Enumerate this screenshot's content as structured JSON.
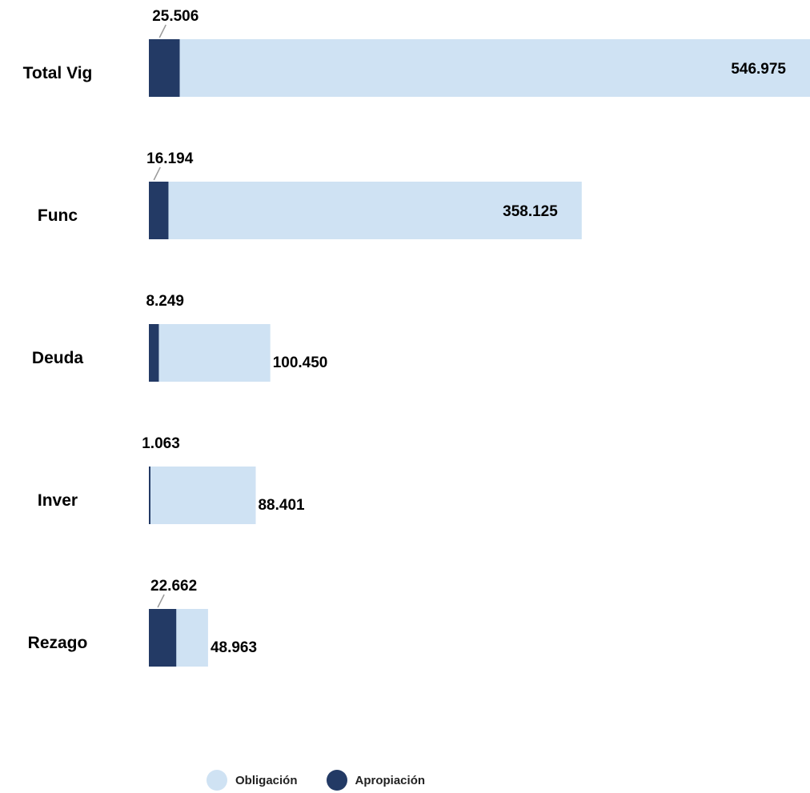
{
  "chart_data": {
    "type": "bar",
    "orientation": "horizontal",
    "stacked": true,
    "categories": [
      "Total Vig",
      "Func",
      "Deuda",
      "Inver",
      "Rezago"
    ],
    "series": [
      {
        "name": "Apropiación",
        "color": "#233a65",
        "values": [
          25506,
          16194,
          8249,
          1063,
          22662
        ],
        "labels": [
          "25.506",
          "16.194",
          "8.249",
          "1.063",
          "22.662"
        ]
      },
      {
        "name": "Obligación",
        "color": "#cfe2f3",
        "values": [
          546975,
          358125,
          100450,
          88401,
          48963
        ],
        "labels": [
          "546.975",
          "358.125",
          "100.450",
          "88.401",
          "48.963"
        ]
      }
    ],
    "grid": false,
    "legend": "bottom"
  },
  "legend": {
    "items": [
      {
        "name": "Obligación",
        "color": "#cfe2f3"
      },
      {
        "name": "Apropiación",
        "color": "#233a65"
      }
    ]
  }
}
